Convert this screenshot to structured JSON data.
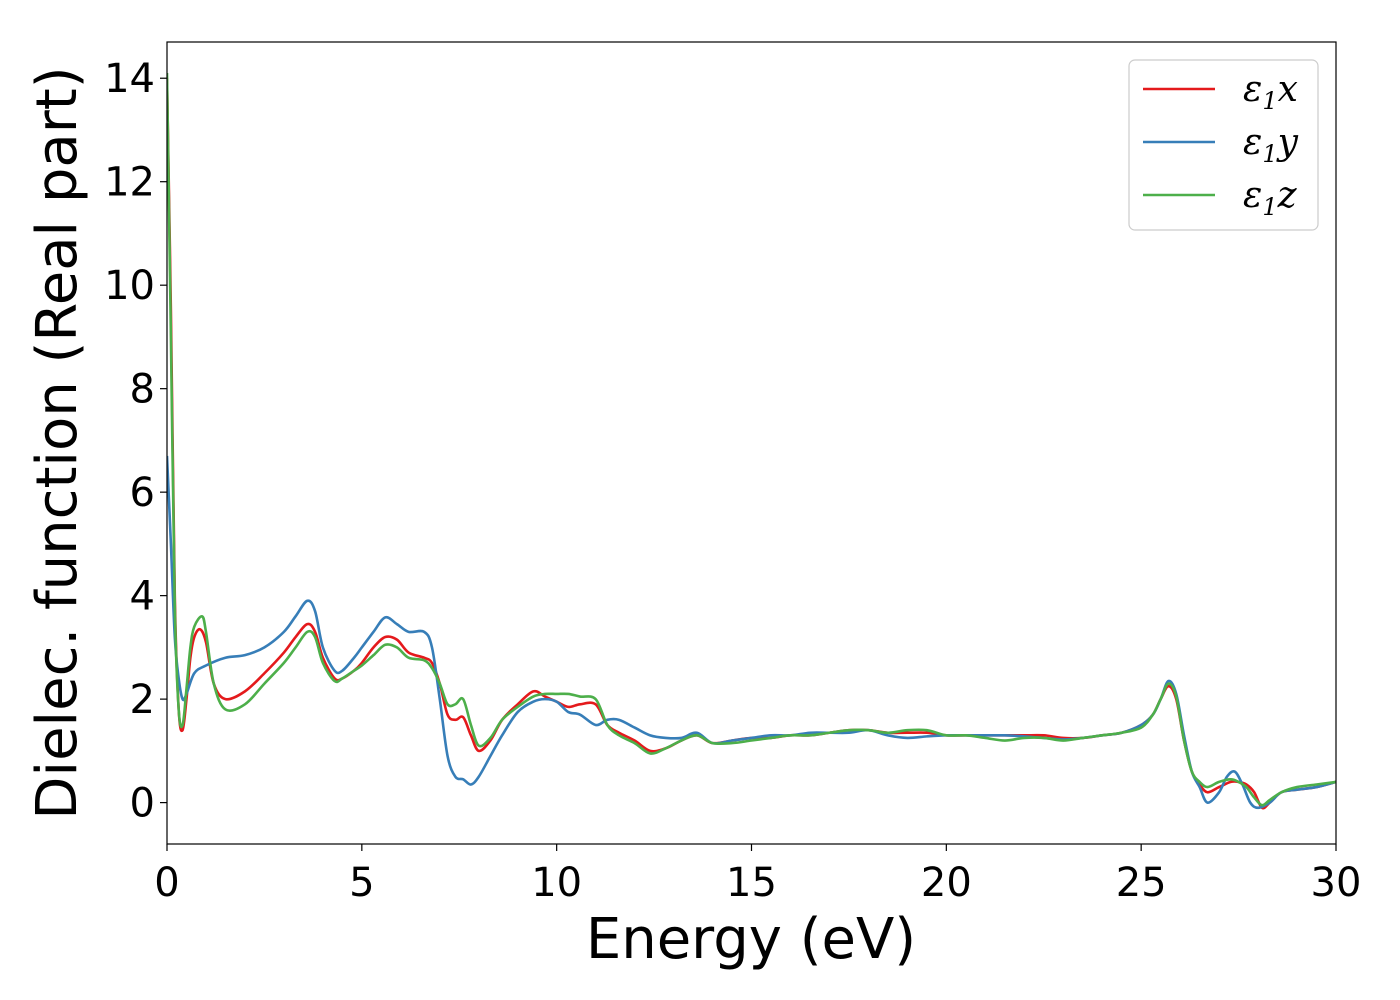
{
  "chart_data": {
    "type": "line",
    "xlabel": "Energy (eV)",
    "ylabel": "Dielec. function (Real part)",
    "xlim": [
      0,
      30
    ],
    "ylim": [
      -0.8,
      14.7
    ],
    "xticks": [
      0,
      5,
      10,
      15,
      20,
      25,
      30
    ],
    "yticks": [
      0,
      2,
      4,
      6,
      8,
      10,
      12,
      14
    ],
    "xtick_labels": [
      "0",
      "5",
      "10",
      "15",
      "20",
      "25",
      "30"
    ],
    "ytick_labels": [
      "0",
      "2",
      "4",
      "6",
      "8",
      "10",
      "12",
      "14"
    ],
    "grid": false,
    "legend_position": "top-right",
    "series": [
      {
        "name": "ε1x",
        "symbol": "ε",
        "subscript": "1",
        "axis": "x",
        "color": "#e41a1c",
        "x": [
          0.0,
          0.1,
          0.2,
          0.3,
          0.4,
          0.5,
          0.6,
          0.7,
          0.85,
          1.0,
          1.2,
          1.5,
          2.0,
          2.5,
          3.0,
          3.3,
          3.6,
          3.8,
          4.0,
          4.3,
          4.5,
          4.8,
          5.0,
          5.3,
          5.6,
          5.9,
          6.2,
          6.6,
          6.8,
          7.0,
          7.2,
          7.4,
          7.6,
          7.8,
          8.0,
          8.3,
          8.6,
          9.0,
          9.4,
          9.7,
          10.0,
          10.3,
          10.6,
          11.0,
          11.3,
          11.6,
          12.0,
          12.4,
          12.8,
          13.2,
          13.6,
          14.0,
          14.5,
          15.0,
          15.5,
          16.0,
          16.5,
          17.0,
          17.5,
          18.0,
          18.5,
          19.0,
          19.5,
          20.0,
          20.5,
          21.0,
          21.5,
          22.0,
          22.5,
          23.0,
          23.5,
          24.0,
          24.5,
          25.0,
          25.3,
          25.5,
          25.7,
          25.9,
          26.1,
          26.3,
          26.5,
          26.7,
          27.0,
          27.3,
          27.5,
          27.7,
          27.9,
          28.1,
          28.3,
          28.6,
          29.0,
          29.5,
          30.0
        ],
        "y": [
          14.0,
          9.5,
          4.0,
          1.8,
          1.4,
          2.0,
          2.8,
          3.2,
          3.35,
          3.1,
          2.3,
          2.0,
          2.15,
          2.5,
          2.9,
          3.2,
          3.45,
          3.3,
          2.8,
          2.4,
          2.4,
          2.55,
          2.7,
          3.0,
          3.2,
          3.15,
          2.9,
          2.8,
          2.7,
          2.3,
          1.7,
          1.6,
          1.65,
          1.3,
          1.0,
          1.2,
          1.6,
          1.9,
          2.15,
          2.05,
          1.95,
          1.85,
          1.9,
          1.9,
          1.5,
          1.35,
          1.2,
          1.0,
          1.05,
          1.2,
          1.3,
          1.15,
          1.2,
          1.25,
          1.25,
          1.3,
          1.3,
          1.35,
          1.4,
          1.4,
          1.35,
          1.35,
          1.35,
          1.3,
          1.3,
          1.3,
          1.3,
          1.3,
          1.3,
          1.25,
          1.25,
          1.3,
          1.35,
          1.5,
          1.7,
          2.0,
          2.25,
          2.0,
          1.2,
          0.6,
          0.35,
          0.2,
          0.3,
          0.4,
          0.4,
          0.35,
          0.2,
          -0.1,
          0.0,
          0.2,
          0.25,
          0.3,
          0.4
        ]
      },
      {
        "name": "ε1y",
        "symbol": "ε",
        "subscript": "1",
        "axis": "y",
        "color": "#377eb8",
        "x": [
          0.0,
          0.1,
          0.2,
          0.3,
          0.4,
          0.5,
          0.7,
          1.0,
          1.5,
          2.0,
          2.5,
          3.0,
          3.3,
          3.6,
          3.8,
          4.0,
          4.3,
          4.5,
          4.8,
          5.0,
          5.3,
          5.6,
          5.9,
          6.2,
          6.6,
          6.8,
          7.0,
          7.2,
          7.4,
          7.6,
          7.8,
          8.0,
          8.3,
          8.6,
          9.0,
          9.4,
          9.7,
          10.0,
          10.3,
          10.6,
          11.0,
          11.3,
          11.6,
          12.0,
          12.4,
          12.8,
          13.2,
          13.6,
          14.0,
          14.5,
          15.0,
          15.5,
          16.0,
          16.5,
          17.0,
          17.5,
          18.0,
          18.5,
          19.0,
          19.5,
          20.0,
          20.5,
          21.0,
          21.5,
          22.0,
          22.5,
          23.0,
          23.5,
          24.0,
          24.5,
          25.0,
          25.3,
          25.5,
          25.7,
          25.9,
          26.1,
          26.3,
          26.5,
          26.7,
          27.0,
          27.2,
          27.4,
          27.6,
          27.8,
          28.0,
          28.3,
          28.6,
          29.0,
          29.5,
          30.0
        ],
        "y": [
          6.7,
          5.0,
          3.2,
          2.4,
          2.0,
          2.1,
          2.5,
          2.65,
          2.8,
          2.85,
          3.0,
          3.3,
          3.6,
          3.9,
          3.7,
          3.0,
          2.55,
          2.55,
          2.8,
          3.0,
          3.3,
          3.58,
          3.45,
          3.3,
          3.3,
          3.0,
          2.0,
          0.9,
          0.5,
          0.45,
          0.35,
          0.5,
          0.9,
          1.3,
          1.75,
          1.95,
          2.0,
          1.95,
          1.75,
          1.7,
          1.5,
          1.6,
          1.6,
          1.45,
          1.3,
          1.25,
          1.25,
          1.35,
          1.15,
          1.2,
          1.25,
          1.3,
          1.3,
          1.35,
          1.35,
          1.35,
          1.4,
          1.3,
          1.25,
          1.28,
          1.3,
          1.3,
          1.3,
          1.3,
          1.28,
          1.25,
          1.22,
          1.25,
          1.3,
          1.35,
          1.5,
          1.7,
          2.0,
          2.35,
          2.1,
          1.3,
          0.6,
          0.3,
          0.0,
          0.2,
          0.5,
          0.6,
          0.35,
          0.0,
          -0.1,
          0.0,
          0.2,
          0.25,
          0.3,
          0.4
        ]
      },
      {
        "name": "ε1z",
        "symbol": "ε",
        "subscript": "1",
        "axis": "z",
        "color": "#4daf4a",
        "x": [
          0.0,
          0.1,
          0.2,
          0.3,
          0.4,
          0.5,
          0.6,
          0.7,
          0.9,
          1.0,
          1.2,
          1.5,
          2.0,
          2.5,
          3.0,
          3.3,
          3.6,
          3.8,
          4.0,
          4.3,
          4.5,
          4.8,
          5.0,
          5.3,
          5.6,
          5.9,
          6.2,
          6.6,
          6.8,
          7.0,
          7.2,
          7.4,
          7.6,
          7.8,
          8.0,
          8.3,
          8.6,
          9.0,
          9.4,
          9.7,
          10.0,
          10.3,
          10.6,
          11.0,
          11.3,
          11.6,
          12.0,
          12.4,
          12.8,
          13.2,
          13.6,
          14.0,
          14.5,
          15.0,
          15.5,
          16.0,
          16.5,
          17.0,
          17.5,
          18.0,
          18.5,
          19.0,
          19.5,
          20.0,
          20.5,
          21.0,
          21.5,
          22.0,
          22.5,
          23.0,
          23.5,
          24.0,
          24.5,
          25.0,
          25.3,
          25.5,
          25.7,
          25.9,
          26.1,
          26.3,
          26.5,
          26.7,
          27.0,
          27.3,
          27.5,
          27.7,
          27.9,
          28.1,
          28.3,
          28.6,
          29.0,
          29.5,
          30.0
        ],
        "y": [
          14.1,
          9.0,
          3.8,
          1.8,
          1.5,
          2.2,
          3.0,
          3.4,
          3.6,
          3.3,
          2.3,
          1.8,
          1.9,
          2.3,
          2.7,
          3.0,
          3.3,
          3.2,
          2.7,
          2.35,
          2.4,
          2.55,
          2.65,
          2.85,
          3.05,
          3.0,
          2.8,
          2.75,
          2.6,
          2.3,
          1.9,
          1.9,
          2.0,
          1.5,
          1.1,
          1.25,
          1.6,
          1.85,
          2.05,
          2.1,
          2.1,
          2.1,
          2.05,
          2.0,
          1.5,
          1.3,
          1.15,
          0.95,
          1.05,
          1.2,
          1.3,
          1.15,
          1.15,
          1.2,
          1.25,
          1.3,
          1.3,
          1.35,
          1.4,
          1.4,
          1.35,
          1.4,
          1.4,
          1.3,
          1.3,
          1.25,
          1.2,
          1.25,
          1.25,
          1.2,
          1.25,
          1.3,
          1.35,
          1.45,
          1.7,
          2.0,
          2.3,
          2.05,
          1.2,
          0.6,
          0.4,
          0.3,
          0.4,
          0.45,
          0.4,
          0.3,
          0.1,
          -0.05,
          0.05,
          0.2,
          0.3,
          0.35,
          0.4
        ]
      }
    ]
  }
}
